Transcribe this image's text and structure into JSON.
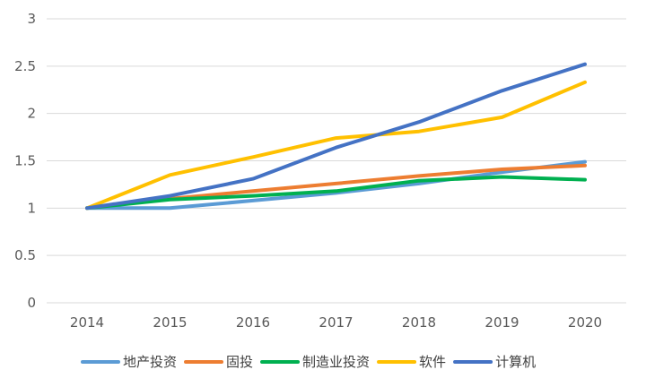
{
  "chart_data": {
    "type": "line",
    "title": "",
    "xlabel": "",
    "ylabel": "",
    "x": [
      "2014",
      "2015",
      "2016",
      "2017",
      "2018",
      "2019",
      "2020"
    ],
    "ylim": [
      0,
      3
    ],
    "yticks": [
      "0",
      "0.5",
      "1",
      "1.5",
      "2",
      "2.5",
      "3"
    ],
    "grid": true,
    "legend_position": "bottom",
    "series": [
      {
        "name": "地产投资",
        "color": "#5B9BD5",
        "values": [
          1.0,
          1.0,
          1.08,
          1.16,
          1.26,
          1.38,
          1.49
        ]
      },
      {
        "name": "固投",
        "color": "#ED7D31",
        "values": [
          1.0,
          1.1,
          1.18,
          1.26,
          1.34,
          1.41,
          1.45
        ]
      },
      {
        "name": "制造业投资",
        "color": "#00B050",
        "values": [
          1.0,
          1.09,
          1.13,
          1.18,
          1.29,
          1.33,
          1.3
        ]
      },
      {
        "name": "软件",
        "color": "#FFC000",
        "values": [
          1.0,
          1.35,
          1.54,
          1.74,
          1.81,
          1.96,
          2.33
        ]
      },
      {
        "name": "计算机",
        "color": "#4472C4",
        "values": [
          1.0,
          1.13,
          1.31,
          1.64,
          1.91,
          2.24,
          2.52
        ]
      }
    ]
  }
}
